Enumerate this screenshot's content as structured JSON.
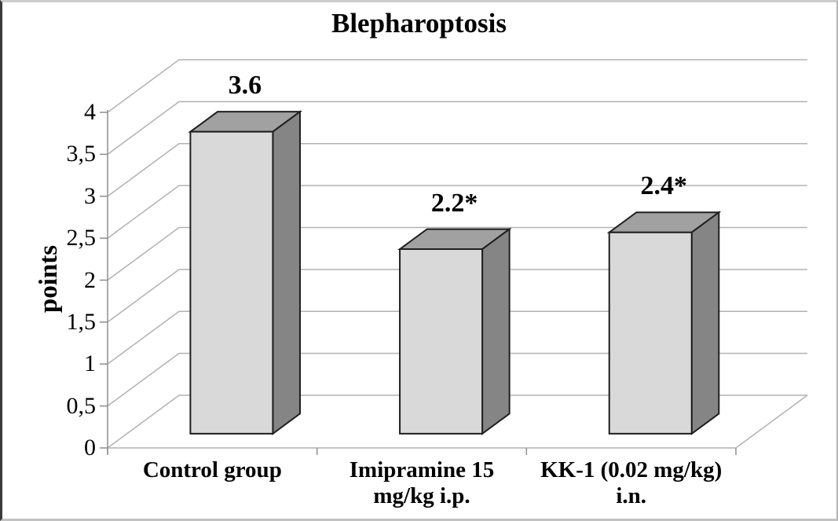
{
  "chart_data": {
    "type": "bar",
    "projection": "3d",
    "title": "Blepharoptosis",
    "ylabel": "points",
    "xlabel": "",
    "categories": [
      "Control group",
      "Imipramine 15\nmg/kg i.p.",
      "KK-1 (0.02 mg/kg)\ni.n."
    ],
    "values": [
      3.6,
      2.2,
      2.4
    ],
    "data_labels": [
      "3.6",
      "2.2*",
      "2.4*"
    ],
    "yticks": [
      {
        "value": 0,
        "label": "0"
      },
      {
        "value": 0.5,
        "label": "0,5"
      },
      {
        "value": 1,
        "label": "1"
      },
      {
        "value": 1.5,
        "label": "1,5"
      },
      {
        "value": 2,
        "label": "2"
      },
      {
        "value": 2.5,
        "label": "2,5"
      },
      {
        "value": 3,
        "label": "3"
      },
      {
        "value": 3.5,
        "label": "3,5"
      },
      {
        "value": 4,
        "label": "4"
      }
    ],
    "ylim": [
      0,
      4
    ],
    "grid": true,
    "legend": false,
    "colors": {
      "bar_front": "#d9d9d9",
      "bar_top": "#a1a1a1",
      "bar_side": "#858585",
      "bar_outline": "#1f1f1f",
      "gridline": "#b2b2b2",
      "axis": "#8f8f8f",
      "text": "#000000",
      "background": "#ffffff"
    }
  }
}
